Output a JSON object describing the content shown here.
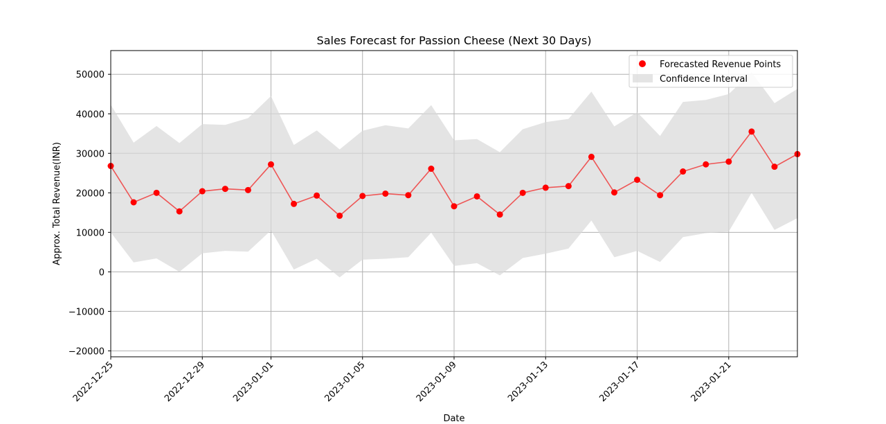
{
  "chart_data": {
    "type": "line",
    "title": "Sales Forecast for Passion Cheese (Next 30 Days)",
    "xlabel": "Date",
    "ylabel": "Approx. Total Revenue(INR)",
    "x": [
      "2022-12-25",
      "2022-12-26",
      "2022-12-27",
      "2022-12-28",
      "2022-12-29",
      "2022-12-30",
      "2022-12-31",
      "2023-01-01",
      "2023-01-02",
      "2023-01-03",
      "2023-01-04",
      "2023-01-05",
      "2023-01-06",
      "2023-01-07",
      "2023-01-08",
      "2023-01-09",
      "2023-01-10",
      "2023-01-11",
      "2023-01-12",
      "2023-01-13",
      "2023-01-14",
      "2023-01-15",
      "2023-01-16",
      "2023-01-17",
      "2023-01-18",
      "2023-01-19",
      "2023-01-20",
      "2023-01-21",
      "2023-01-22",
      "2023-01-23",
      "2023-01-24"
    ],
    "series": [
      {
        "name": "Forecasted Revenue Points",
        "color": "#ff0000",
        "line_color": "#ee5555",
        "values": [
          26800,
          17600,
          20000,
          15300,
          20400,
          21000,
          20700,
          27200,
          17200,
          19300,
          14200,
          19200,
          19800,
          19400,
          26100,
          16600,
          19100,
          14500,
          20000,
          21300,
          21700,
          29100,
          20100,
          23300,
          19400,
          25400,
          27200,
          27900,
          35500,
          26600,
          29800
        ]
      }
    ],
    "confidence_interval": {
      "name": "Confidence Interval",
      "color": "#d9d9d9",
      "upper": [
        42300,
        32700,
        36900,
        32600,
        37400,
        37200,
        38900,
        44500,
        32100,
        35800,
        31000,
        35700,
        37100,
        36300,
        42200,
        33300,
        33600,
        30300,
        36100,
        37900,
        38700,
        45600,
        36800,
        40400,
        34400,
        43000,
        43500,
        45000,
        50500,
        42700,
        46300
      ],
      "lower": [
        10000,
        2400,
        3400,
        0,
        4700,
        5300,
        5100,
        10500,
        600,
        3300,
        -1400,
        3100,
        3300,
        3700,
        9900,
        1500,
        2200,
        -900,
        3500,
        4600,
        5900,
        13000,
        3700,
        5300,
        2500,
        8800,
        9800,
        10200,
        20000,
        10600,
        13600
      ]
    },
    "xticks": [
      "2022-12-25",
      "2022-12-29",
      "2023-01-01",
      "2023-01-05",
      "2023-01-09",
      "2023-01-13",
      "2023-01-17",
      "2023-01-21"
    ],
    "yticks": [
      -20000,
      -10000,
      0,
      10000,
      20000,
      30000,
      40000,
      50000
    ],
    "ytick_labels": [
      "−20000",
      "−10000",
      "0",
      "10000",
      "20000",
      "30000",
      "40000",
      "50000"
    ],
    "xlim": [
      "2022-12-25",
      "2023-01-24"
    ],
    "ylim": [
      -21500,
      56000
    ],
    "grid": true,
    "legend": "top-right"
  }
}
